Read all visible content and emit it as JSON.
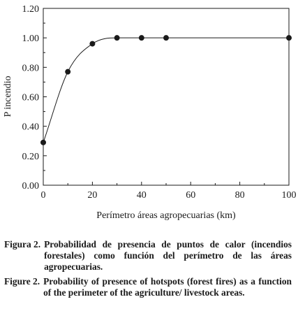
{
  "chart_data": {
    "type": "line",
    "title": "",
    "xlabel": "Perímetro áreas agropecuarias (km)",
    "ylabel": "P incendio",
    "xlim": [
      0,
      100
    ],
    "ylim": [
      0,
      1.2
    ],
    "x_ticks": [
      "0",
      "20",
      "40",
      "60",
      "80",
      "100"
    ],
    "y_ticks": [
      "0.00",
      "0.20",
      "0.40",
      "0.60",
      "0.80",
      "1.00",
      "1.20"
    ],
    "grid": false,
    "series": [
      {
        "points": [
          {
            "x": 0,
            "y": 0.29
          },
          {
            "x": 10,
            "y": 0.77
          },
          {
            "x": 20,
            "y": 0.96
          },
          {
            "x": 30,
            "y": 1.0
          },
          {
            "x": 40,
            "y": 1.0
          },
          {
            "x": 50,
            "y": 1.0
          },
          {
            "x": 100,
            "y": 1.0
          }
        ]
      }
    ]
  },
  "captions": {
    "es": {
      "label": "Figura 2.",
      "text": "Probabilidad de presencia de puntos de calor (incendios forestales) como función del perímetro de las áreas agropecuarias."
    },
    "en": {
      "label": "Figure 2.",
      "text": "Probability of presence of hotspots (forest fires) as a function of the perimeter of the agriculture/ livestock areas."
    }
  }
}
